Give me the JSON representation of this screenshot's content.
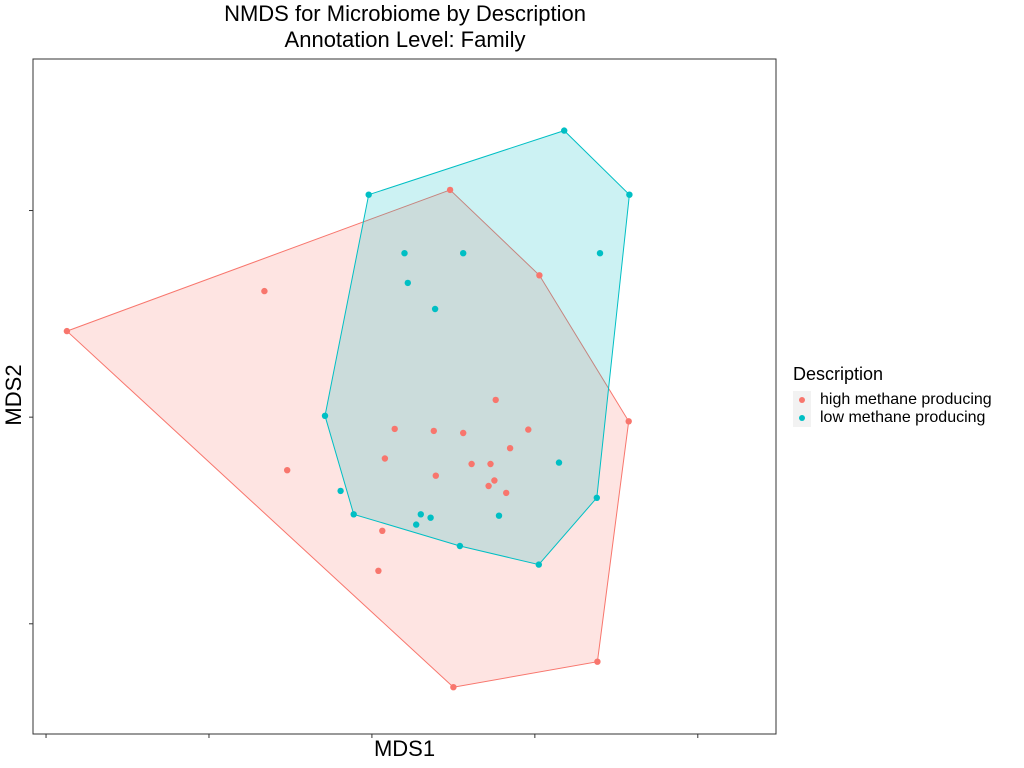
{
  "chart_data": {
    "type": "scatter",
    "title": "NMDS for Microbiome by Description",
    "subtitle": "Annotation Level: Family",
    "xlabel": "MDS1",
    "ylabel": "MDS2",
    "xlim": [
      -0.62,
      0.52
    ],
    "ylim": [
      -0.46,
      0.52
    ],
    "x_ticks": [
      -0.6,
      -0.35,
      -0.1,
      0.15,
      0.4
    ],
    "y_ticks": [
      -0.3,
      0.0,
      0.3
    ],
    "grid": false,
    "legend": {
      "title": "Description",
      "placement": "right",
      "entries": [
        "high methane producing",
        "low methane producing"
      ]
    },
    "series": [
      {
        "name": "high methane producing",
        "color": "#F8766D",
        "hull_fill_opacity": 0.2,
        "points": [
          [
            -0.568,
            0.125
          ],
          [
            -0.265,
            0.183
          ],
          [
            -0.23,
            -0.077
          ],
          [
            0.02,
            0.33
          ],
          [
            0.025,
            -0.392
          ],
          [
            0.157,
            0.206
          ],
          [
            0.246,
            -0.355
          ],
          [
            0.294,
            -0.006
          ],
          [
            -0.084,
            -0.165
          ],
          [
            -0.09,
            -0.223
          ],
          [
            -0.065,
            -0.017
          ],
          [
            -0.08,
            -0.06
          ],
          [
            -0.005,
            -0.02
          ],
          [
            -0.002,
            -0.085
          ],
          [
            0.04,
            -0.023
          ],
          [
            0.09,
            0.025
          ],
          [
            0.053,
            -0.068
          ],
          [
            0.082,
            -0.068
          ],
          [
            0.112,
            -0.045
          ],
          [
            0.14,
            -0.018
          ],
          [
            0.106,
            -0.11
          ],
          [
            0.079,
            -0.1
          ],
          [
            0.088,
            -0.092
          ]
        ],
        "hull": [
          [
            -0.568,
            0.125
          ],
          [
            0.02,
            0.33
          ],
          [
            0.157,
            0.206
          ],
          [
            0.294,
            -0.006
          ],
          [
            0.246,
            -0.355
          ],
          [
            0.025,
            -0.392
          ]
        ]
      },
      {
        "name": "low methane producing",
        "color": "#00BFC4",
        "hull_fill_opacity": 0.2,
        "points": [
          [
            -0.105,
            0.323
          ],
          [
            0.195,
            0.416
          ],
          [
            0.295,
            0.323
          ],
          [
            0.25,
            0.238
          ],
          [
            -0.05,
            0.238
          ],
          [
            0.04,
            0.238
          ],
          [
            -0.045,
            0.195
          ],
          [
            -0.003,
            0.157
          ],
          [
            -0.172,
            0.002
          ],
          [
            0.245,
            -0.117
          ],
          [
            0.156,
            -0.214
          ],
          [
            0.035,
            -0.187
          ],
          [
            -0.128,
            -0.141
          ],
          [
            -0.148,
            -0.107
          ],
          [
            -0.025,
            -0.141
          ],
          [
            -0.032,
            -0.156
          ],
          [
            -0.01,
            -0.146
          ],
          [
            0.095,
            -0.143
          ],
          [
            0.187,
            -0.066
          ]
        ],
        "hull": [
          [
            -0.105,
            0.323
          ],
          [
            0.195,
            0.416
          ],
          [
            0.295,
            0.323
          ],
          [
            0.245,
            -0.117
          ],
          [
            0.156,
            -0.214
          ],
          [
            0.035,
            -0.187
          ],
          [
            -0.128,
            -0.141
          ],
          [
            -0.172,
            0.002
          ]
        ]
      }
    ]
  }
}
